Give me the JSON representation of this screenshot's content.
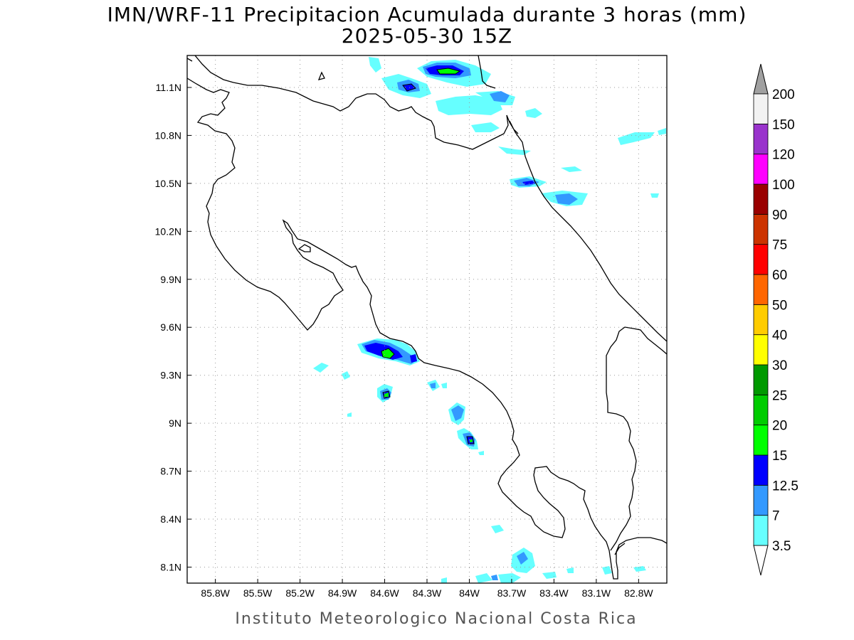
{
  "title": {
    "line1": "IMN/WRF-11 Precipitacion Acumulada durante 3 horas (mm)",
    "line2": "2025-05-30 15Z"
  },
  "footer": "Instituto Meteorologico Nacional Costa Rica",
  "map": {
    "lon_range": [
      -86.0,
      -82.6
    ],
    "lat_range": [
      8.0,
      11.3
    ],
    "lon_ticks": [
      -85.8,
      -85.5,
      -85.2,
      -84.9,
      -84.6,
      -84.3,
      -84.0,
      -83.7,
      -83.4,
      -83.1,
      -82.8
    ],
    "lon_tick_labels": [
      "85.8W",
      "85.5W",
      "85.2W",
      "84.9W",
      "84.6W",
      "84.3W",
      "84W",
      "83.7W",
      "83.4W",
      "83.1W",
      "82.8W"
    ],
    "lat_ticks": [
      11.1,
      10.8,
      10.5,
      10.2,
      9.9,
      9.6,
      9.3,
      9.0,
      8.7,
      8.4,
      8.1
    ],
    "lat_tick_labels": [
      "11.1N",
      "10.8N",
      "10.5N",
      "10.2N",
      "9.9N",
      "9.6N",
      "9.3N",
      "9N",
      "8.7N",
      "8.4N",
      "8.1N"
    ],
    "grid": true
  },
  "colorbar": {
    "unit": "mm",
    "levels": [
      "3.5",
      "7",
      "12.5",
      "15",
      "20",
      "25",
      "30",
      "40",
      "50",
      "60",
      "75",
      "90",
      "100",
      "120",
      "150",
      "200"
    ],
    "colors": [
      "#66ffff",
      "#3399ff",
      "#0000ff",
      "#00ff00",
      "#00cc00",
      "#009900",
      "#ffff00",
      "#ffcc00",
      "#ff6600",
      "#ff0000",
      "#cc3300",
      "#990000",
      "#ff00ff",
      "#9933cc",
      "#f2f2f2"
    ],
    "top_arrow_color": "#a0a0a0",
    "bottom_arrow_color": "#ffffff"
  }
}
